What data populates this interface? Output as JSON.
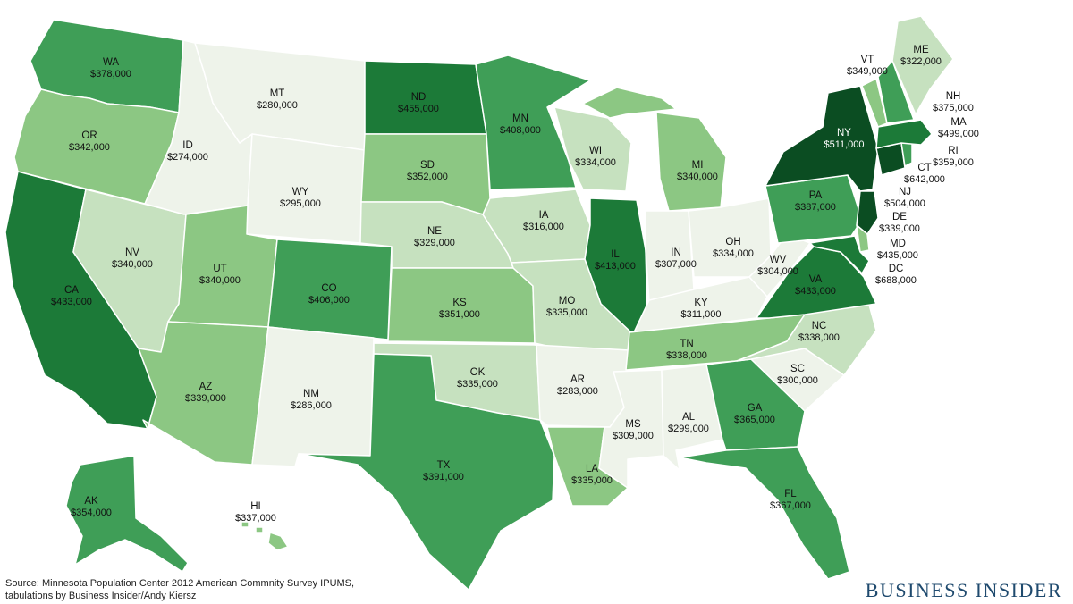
{
  "legend_colors": {
    "lightest": "#eef3ea",
    "light": "#c6e1bf",
    "medium": "#8cc783",
    "dark": "#3f9e57",
    "darker": "#1c7a38",
    "darkest": "#0b4d22"
  },
  "states": {
    "WA": {
      "code": "WA",
      "value": "$378,000"
    },
    "OR": {
      "code": "OR",
      "value": "$342,000"
    },
    "CA": {
      "code": "CA",
      "value": "$433,000"
    },
    "NV": {
      "code": "NV",
      "value": "$340,000"
    },
    "ID": {
      "code": "ID",
      "value": "$274,000"
    },
    "MT": {
      "code": "MT",
      "value": "$280,000"
    },
    "WY": {
      "code": "WY",
      "value": "$295,000"
    },
    "UT": {
      "code": "UT",
      "value": "$340,000"
    },
    "AZ": {
      "code": "AZ",
      "value": "$339,000"
    },
    "CO": {
      "code": "CO",
      "value": "$406,000"
    },
    "NM": {
      "code": "NM",
      "value": "$286,000"
    },
    "ND": {
      "code": "ND",
      "value": "$455,000"
    },
    "SD": {
      "code": "SD",
      "value": "$352,000"
    },
    "NE": {
      "code": "NE",
      "value": "$329,000"
    },
    "KS": {
      "code": "KS",
      "value": "$351,000"
    },
    "OK": {
      "code": "OK",
      "value": "$335,000"
    },
    "TX": {
      "code": "TX",
      "value": "$391,000"
    },
    "MN": {
      "code": "MN",
      "value": "$408,000"
    },
    "IA": {
      "code": "IA",
      "value": "$316,000"
    },
    "MO": {
      "code": "MO",
      "value": "$335,000"
    },
    "AR": {
      "code": "AR",
      "value": "$283,000"
    },
    "LA": {
      "code": "LA",
      "value": "$335,000"
    },
    "WI": {
      "code": "WI",
      "value": "$334,000"
    },
    "IL": {
      "code": "IL",
      "value": "$413,000"
    },
    "MI": {
      "code": "MI",
      "value": "$340,000"
    },
    "IN": {
      "code": "IN",
      "value": "$307,000"
    },
    "OH": {
      "code": "OH",
      "value": "$334,000"
    },
    "KY": {
      "code": "KY",
      "value": "$311,000"
    },
    "TN": {
      "code": "TN",
      "value": "$338,000"
    },
    "MS": {
      "code": "MS",
      "value": "$309,000"
    },
    "AL": {
      "code": "AL",
      "value": "$299,000"
    },
    "GA": {
      "code": "GA",
      "value": "$365,000"
    },
    "FL": {
      "code": "FL",
      "value": "$367,000"
    },
    "SC": {
      "code": "SC",
      "value": "$300,000"
    },
    "NC": {
      "code": "NC",
      "value": "$338,000"
    },
    "VA": {
      "code": "VA",
      "value": "$433,000"
    },
    "WV": {
      "code": "WV",
      "value": "$304,000"
    },
    "PA": {
      "code": "PA",
      "value": "$387,000"
    },
    "NY": {
      "code": "NY",
      "value": "$511,000"
    },
    "VT": {
      "code": "VT",
      "value": "$349,000"
    },
    "NH": {
      "code": "NH",
      "value": "$375,000"
    },
    "ME": {
      "code": "ME",
      "value": "$322,000"
    },
    "MA": {
      "code": "MA",
      "value": "$499,000"
    },
    "RI": {
      "code": "RI",
      "value": "$359,000"
    },
    "CT": {
      "code": "CT",
      "value": "$642,000"
    },
    "NJ": {
      "code": "NJ",
      "value": "$504,000"
    },
    "DE": {
      "code": "DE",
      "value": "$339,000"
    },
    "MD": {
      "code": "MD",
      "value": "$435,000"
    },
    "DC": {
      "code": "DC",
      "value": "$688,000"
    },
    "AK": {
      "code": "AK",
      "value": "$354,000"
    },
    "HI": {
      "code": "HI",
      "value": "$337,000"
    }
  },
  "footer": {
    "source_line1": "Source: Minnesota Population Center 2012 American Commnity Survey IPUMS,",
    "source_line2": "tabulations by Business Insider/Andy Kiersz",
    "brand": "BUSINESS INSIDER"
  }
}
